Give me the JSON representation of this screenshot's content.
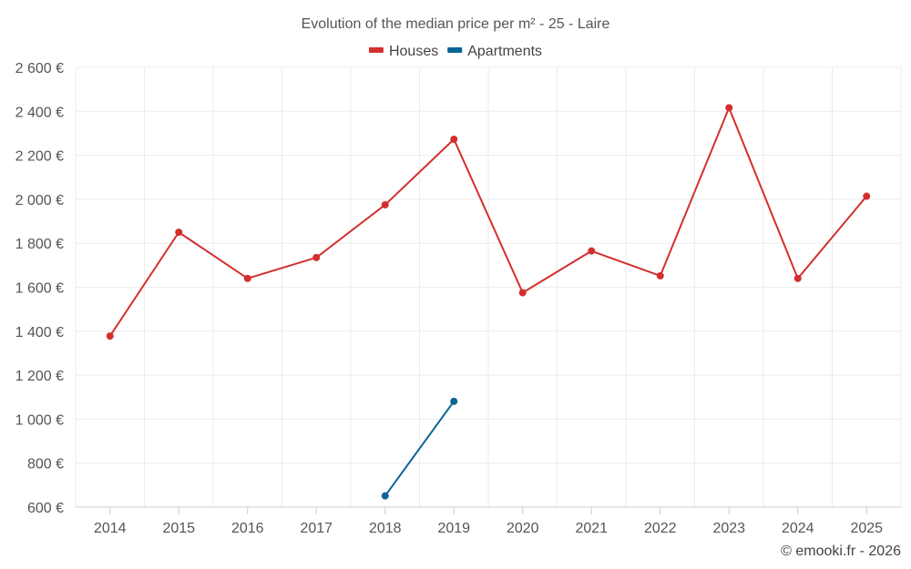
{
  "chart_data": {
    "type": "line",
    "title": "Evolution of the median price per m² - 25 - Laire",
    "xlabel": "",
    "ylabel": "",
    "categories": [
      "2014",
      "2015",
      "2016",
      "2017",
      "2018",
      "2019",
      "2020",
      "2021",
      "2022",
      "2023",
      "2024",
      "2025"
    ],
    "ylim": [
      600,
      2600
    ],
    "yticks": [
      600,
      800,
      1000,
      1200,
      1400,
      1600,
      1800,
      2000,
      2200,
      2400,
      2600
    ],
    "ytick_labels": [
      "600 €",
      "800 €",
      "1 000 €",
      "1 200 €",
      "1 400 €",
      "1 600 €",
      "1 800 €",
      "2 000 €",
      "2 200 €",
      "2 400 €",
      "2 600 €"
    ],
    "grid": true,
    "legend_position": "top-center",
    "series": [
      {
        "name": "Houses",
        "color": "#d32f2f",
        "values": [
          1378,
          1850,
          1640,
          1735,
          1975,
          2273,
          1575,
          1765,
          1652,
          2416,
          1640,
          2014
        ]
      },
      {
        "name": "Apartments",
        "color": "#0a6496",
        "values": [
          null,
          null,
          null,
          null,
          651,
          1081,
          null,
          null,
          null,
          null,
          null,
          null
        ]
      }
    ]
  },
  "credit": "© emooki.fr - 2026"
}
